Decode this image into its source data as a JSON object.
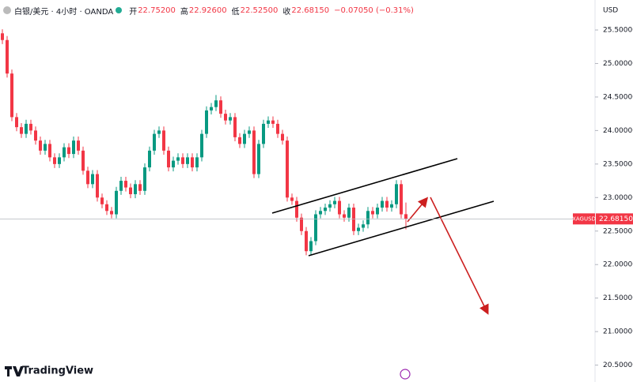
{
  "header": {
    "symbol": "白银/美元 · 4小时 · OANDA",
    "open_label": "开",
    "open": "22.75200",
    "high_label": "高",
    "high": "22.92600",
    "low_label": "低",
    "low": "22.52500",
    "close_label": "收",
    "close": "22.68150",
    "change": "−0.07050 (−0.31%)",
    "currency": "USD",
    "brand": "TradingView"
  },
  "chart_data": {
    "type": "candlestick",
    "ticker": "XAGUSD",
    "last_price": {
      "value": 22.6815,
      "label": "22.68150"
    },
    "up_color": "#089981",
    "down_color": "#f23645",
    "ylim": [
      20.42,
      25.6
    ],
    "yticks": [
      {
        "value": 25.5,
        "label": "25.50000"
      },
      {
        "value": 25,
        "label": "25.00000"
      },
      {
        "value": 24.5,
        "label": "24.50000"
      },
      {
        "value": 24,
        "label": "24.00000"
      },
      {
        "value": 23.5,
        "label": "23.50000"
      },
      {
        "value": 23,
        "label": "23.00000"
      },
      {
        "value": 22.5,
        "label": "22.50000"
      },
      {
        "value": 22,
        "label": "22.00000"
      },
      {
        "value": 21.5,
        "label": "21.50000"
      },
      {
        "value": 21,
        "label": "21.00000"
      },
      {
        "value": 20.5,
        "label": "20.50000"
      }
    ],
    "open": [
      25.45,
      25.35,
      24.85,
      24.2,
      24.05,
      23.95,
      24.1,
      24.0,
      23.85,
      23.7,
      23.8,
      23.6,
      23.5,
      23.6,
      23.75,
      23.65,
      23.85,
      23.7,
      23.4,
      23.2,
      23.35,
      23.0,
      22.9,
      22.8,
      22.75,
      23.1,
      23.25,
      23.15,
      23.05,
      23.2,
      23.1,
      23.45,
      23.7,
      23.95,
      24.0,
      23.7,
      23.45,
      23.55,
      23.6,
      23.5,
      23.6,
      23.45,
      23.6,
      23.95,
      24.3,
      24.35,
      24.45,
      24.25,
      24.15,
      24.2,
      23.9,
      23.8,
      23.95,
      24.0,
      23.35,
      23.8,
      24.1,
      24.15,
      24.1,
      23.95,
      23.85,
      23.0,
      22.95,
      22.7,
      22.5,
      22.2,
      22.35,
      22.75,
      22.8,
      22.85,
      22.9,
      22.95,
      22.75,
      22.7,
      22.85,
      22.5,
      22.55,
      22.6,
      22.8,
      22.75,
      22.85,
      22.95,
      22.85,
      22.9,
      23.2,
      22.752
    ],
    "high": [
      25.51,
      25.41,
      24.91,
      24.26,
      24.11,
      24.16,
      24.16,
      24.06,
      23.91,
      23.86,
      23.86,
      23.66,
      23.66,
      23.81,
      23.81,
      23.91,
      23.91,
      23.76,
      23.46,
      23.41,
      23.41,
      23.06,
      22.96,
      22.86,
      23.16,
      23.31,
      23.31,
      23.21,
      23.26,
      23.26,
      23.51,
      23.76,
      24.01,
      24.06,
      24.06,
      23.76,
      23.61,
      23.66,
      23.66,
      23.66,
      23.66,
      23.66,
      24.01,
      24.36,
      24.41,
      24.53,
      24.51,
      24.31,
      24.26,
      24.26,
      23.96,
      24.01,
      24.06,
      24.06,
      23.86,
      24.16,
      24.21,
      24.21,
      24.16,
      24.01,
      23.91,
      23.06,
      23.01,
      22.76,
      22.56,
      22.41,
      22.81,
      22.86,
      22.91,
      22.96,
      23.01,
      23.01,
      22.81,
      22.91,
      22.91,
      22.61,
      22.66,
      22.86,
      22.86,
      22.91,
      23.01,
      23.01,
      22.96,
      23.26,
      23.26,
      22.926
    ],
    "low": [
      25.29,
      24.79,
      24.14,
      23.99,
      23.89,
      23.89,
      23.94,
      23.79,
      23.64,
      23.64,
      23.54,
      23.44,
      23.44,
      23.54,
      23.59,
      23.59,
      23.64,
      23.34,
      23.14,
      23.14,
      22.94,
      22.84,
      22.74,
      22.69,
      22.69,
      23.04,
      23.09,
      22.99,
      22.99,
      23.04,
      23.04,
      23.39,
      23.64,
      23.89,
      23.64,
      23.39,
      23.39,
      23.49,
      23.44,
      23.44,
      23.39,
      23.39,
      23.54,
      23.89,
      24.24,
      24.29,
      24.19,
      24.09,
      24.09,
      23.84,
      23.74,
      23.74,
      23.89,
      23.29,
      23.29,
      23.74,
      24.04,
      24.04,
      23.89,
      23.79,
      22.94,
      22.89,
      22.64,
      22.44,
      22.14,
      22.14,
      22.29,
      22.69,
      22.74,
      22.79,
      22.84,
      22.69,
      22.64,
      22.64,
      22.44,
      22.44,
      22.49,
      22.54,
      22.69,
      22.69,
      22.79,
      22.79,
      22.79,
      22.84,
      22.69,
      22.525
    ],
    "close": [
      25.35,
      24.85,
      24.2,
      24.05,
      23.95,
      24.1,
      24.0,
      23.85,
      23.7,
      23.8,
      23.6,
      23.5,
      23.6,
      23.75,
      23.65,
      23.85,
      23.7,
      23.4,
      23.2,
      23.35,
      23.0,
      22.9,
      22.8,
      22.75,
      23.1,
      23.25,
      23.15,
      23.05,
      23.2,
      23.1,
      23.45,
      23.7,
      23.95,
      24.0,
      23.7,
      23.45,
      23.55,
      23.6,
      23.5,
      23.6,
      23.45,
      23.6,
      23.95,
      24.3,
      24.35,
      24.45,
      24.25,
      24.15,
      24.2,
      23.9,
      23.8,
      23.95,
      24.0,
      23.35,
      23.8,
      24.1,
      24.15,
      24.1,
      23.95,
      23.85,
      23.0,
      22.95,
      22.7,
      22.5,
      22.2,
      22.35,
      22.75,
      22.8,
      22.85,
      22.9,
      22.95,
      22.75,
      22.7,
      22.85,
      22.5,
      22.55,
      22.6,
      22.8,
      22.75,
      22.85,
      22.95,
      22.85,
      22.9,
      23.2,
      22.75,
      22.6815
    ]
  }
}
